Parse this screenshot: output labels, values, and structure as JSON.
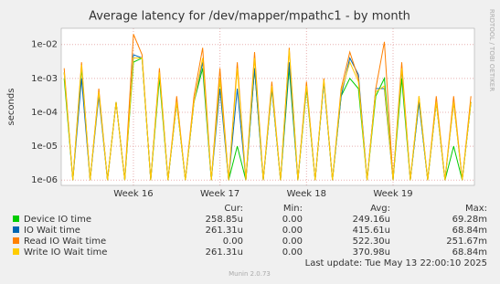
{
  "chart_data": {
    "type": "line",
    "title": "Average latency for /dev/mapper/mpathc1 - by month",
    "y_label": "seconds",
    "side_text": "RRDTOOL / TOBI OETIKER",
    "footer": "Munin 2.0.73",
    "last_update": "Last update: Tue May 13 22:00:10 2025",
    "log_y": true,
    "grid": true,
    "xlim": [
      15.166,
      19.94
    ],
    "xticks": [
      {
        "value": 16,
        "label": "Week 16"
      },
      {
        "value": 17,
        "label": "Week 17"
      },
      {
        "value": 18,
        "label": "Week 18"
      },
      {
        "value": 19,
        "label": "Week 19"
      }
    ],
    "ylim": [
      7e-07,
      0.03
    ],
    "yticks": [
      {
        "value": 0.01,
        "label": "1e-02"
      },
      {
        "value": 0.001,
        "label": "1e-03"
      },
      {
        "value": 0.0001,
        "label": "1e-04"
      },
      {
        "value": 1e-05,
        "label": "1e-05"
      },
      {
        "value": 1e-06,
        "label": "1e-06"
      }
    ],
    "legend_columns": [
      "Cur:",
      "Min:",
      "Avg:",
      "Max:"
    ],
    "x": [
      15.2,
      15.3,
      15.4,
      15.5,
      15.6,
      15.7,
      15.8,
      15.9,
      16.0,
      16.1,
      16.2,
      16.3,
      16.4,
      16.5,
      16.6,
      16.7,
      16.8,
      16.9,
      17.0,
      17.1,
      17.2,
      17.3,
      17.4,
      17.5,
      17.6,
      17.7,
      17.8,
      17.9,
      18.0,
      18.1,
      18.2,
      18.3,
      18.4,
      18.5,
      18.6,
      18.7,
      18.8,
      18.9,
      19.0,
      19.1,
      19.2,
      19.3,
      19.4,
      19.5,
      19.6,
      19.7,
      19.8,
      19.9
    ],
    "series": [
      {
        "name": "Device IO time",
        "color": "#00cc00",
        "stats": [
          "258.85u",
          "0.00",
          "249.16u",
          "69.28m"
        ],
        "values": [
          0.001,
          1e-06,
          0.002,
          1e-06,
          0.0004,
          1e-06,
          0.0002,
          1e-06,
          0.003,
          0.004,
          1e-06,
          0.001,
          1e-06,
          0.0002,
          1e-06,
          0.0002,
          0.002,
          1e-06,
          0.001,
          1e-06,
          1e-05,
          1e-06,
          0.002,
          1e-06,
          0.0005,
          1e-06,
          0.002,
          1e-06,
          0.0005,
          1e-06,
          0.0008,
          1e-06,
          0.0003,
          0.001,
          0.0005,
          1e-06,
          0.0003,
          0.001,
          1e-06,
          0.001,
          1e-06,
          0.0002,
          1e-06,
          0.0002,
          1e-06,
          1e-05,
          1e-06,
          0.0002
        ]
      },
      {
        "name": "IO Wait time",
        "color": "#0066b3",
        "stats": [
          "261.31u",
          "0.00",
          "415.61u",
          "68.84m"
        ],
        "values": [
          0.0015,
          1e-06,
          0.001,
          1e-06,
          0.0003,
          1e-06,
          0.0002,
          1e-06,
          0.005,
          0.004,
          1e-06,
          0.0015,
          1e-06,
          0.0002,
          1e-06,
          0.0002,
          0.003,
          1e-06,
          0.0005,
          1e-06,
          0.0005,
          1e-06,
          0.002,
          1e-06,
          0.0005,
          1e-06,
          0.003,
          1e-06,
          0.0006,
          1e-06,
          0.0008,
          1e-06,
          0.0003,
          0.004,
          0.0013,
          1e-06,
          0.0005,
          0.0005,
          1e-06,
          0.002,
          1e-06,
          0.0002,
          1e-06,
          0.0002,
          1e-06,
          0.0002,
          1e-06,
          0.0002
        ]
      },
      {
        "name": "Read IO Wait time",
        "color": "#ff8000",
        "stats": [
          "0.00",
          "0.00",
          "522.30u",
          "251.67m"
        ],
        "values": [
          0.002,
          1e-06,
          0.003,
          1e-06,
          0.0005,
          1e-06,
          0.0002,
          1e-06,
          0.02,
          0.005,
          1e-06,
          0.002,
          1e-06,
          0.0003,
          1e-06,
          0.0003,
          0.008,
          1e-06,
          0.002,
          1e-06,
          0.003,
          1e-06,
          0.006,
          1e-06,
          0.0008,
          1e-06,
          0.008,
          1e-06,
          0.0008,
          1e-06,
          0.001,
          1e-06,
          0.0005,
          0.006,
          0.001,
          1e-06,
          0.0005,
          0.012,
          1e-06,
          0.003,
          1e-06,
          0.0003,
          1e-06,
          0.0003,
          1e-06,
          0.0003,
          1e-06,
          0.0003
        ]
      },
      {
        "name": "Write IO Wait time",
        "color": "#ffcc00",
        "stats": [
          "261.31u",
          "0.00",
          "370.98u",
          "68.84m"
        ],
        "values": [
          0.0015,
          1e-06,
          0.0025,
          1e-06,
          0.0004,
          1e-06,
          0.0002,
          1e-06,
          0.004,
          0.004,
          1e-06,
          0.0015,
          1e-06,
          0.0002,
          1e-06,
          0.0002,
          0.004,
          1e-06,
          0.001,
          1e-06,
          0.002,
          1e-06,
          0.004,
          1e-06,
          0.0006,
          1e-06,
          0.007,
          1e-06,
          0.0006,
          1e-06,
          0.0009,
          1e-06,
          0.0004,
          0.003,
          0.0008,
          1e-06,
          0.0004,
          0.0006,
          1e-06,
          0.002,
          1e-06,
          0.0003,
          1e-06,
          0.0002,
          1e-06,
          0.0002,
          1e-06,
          0.0002
        ]
      }
    ]
  }
}
